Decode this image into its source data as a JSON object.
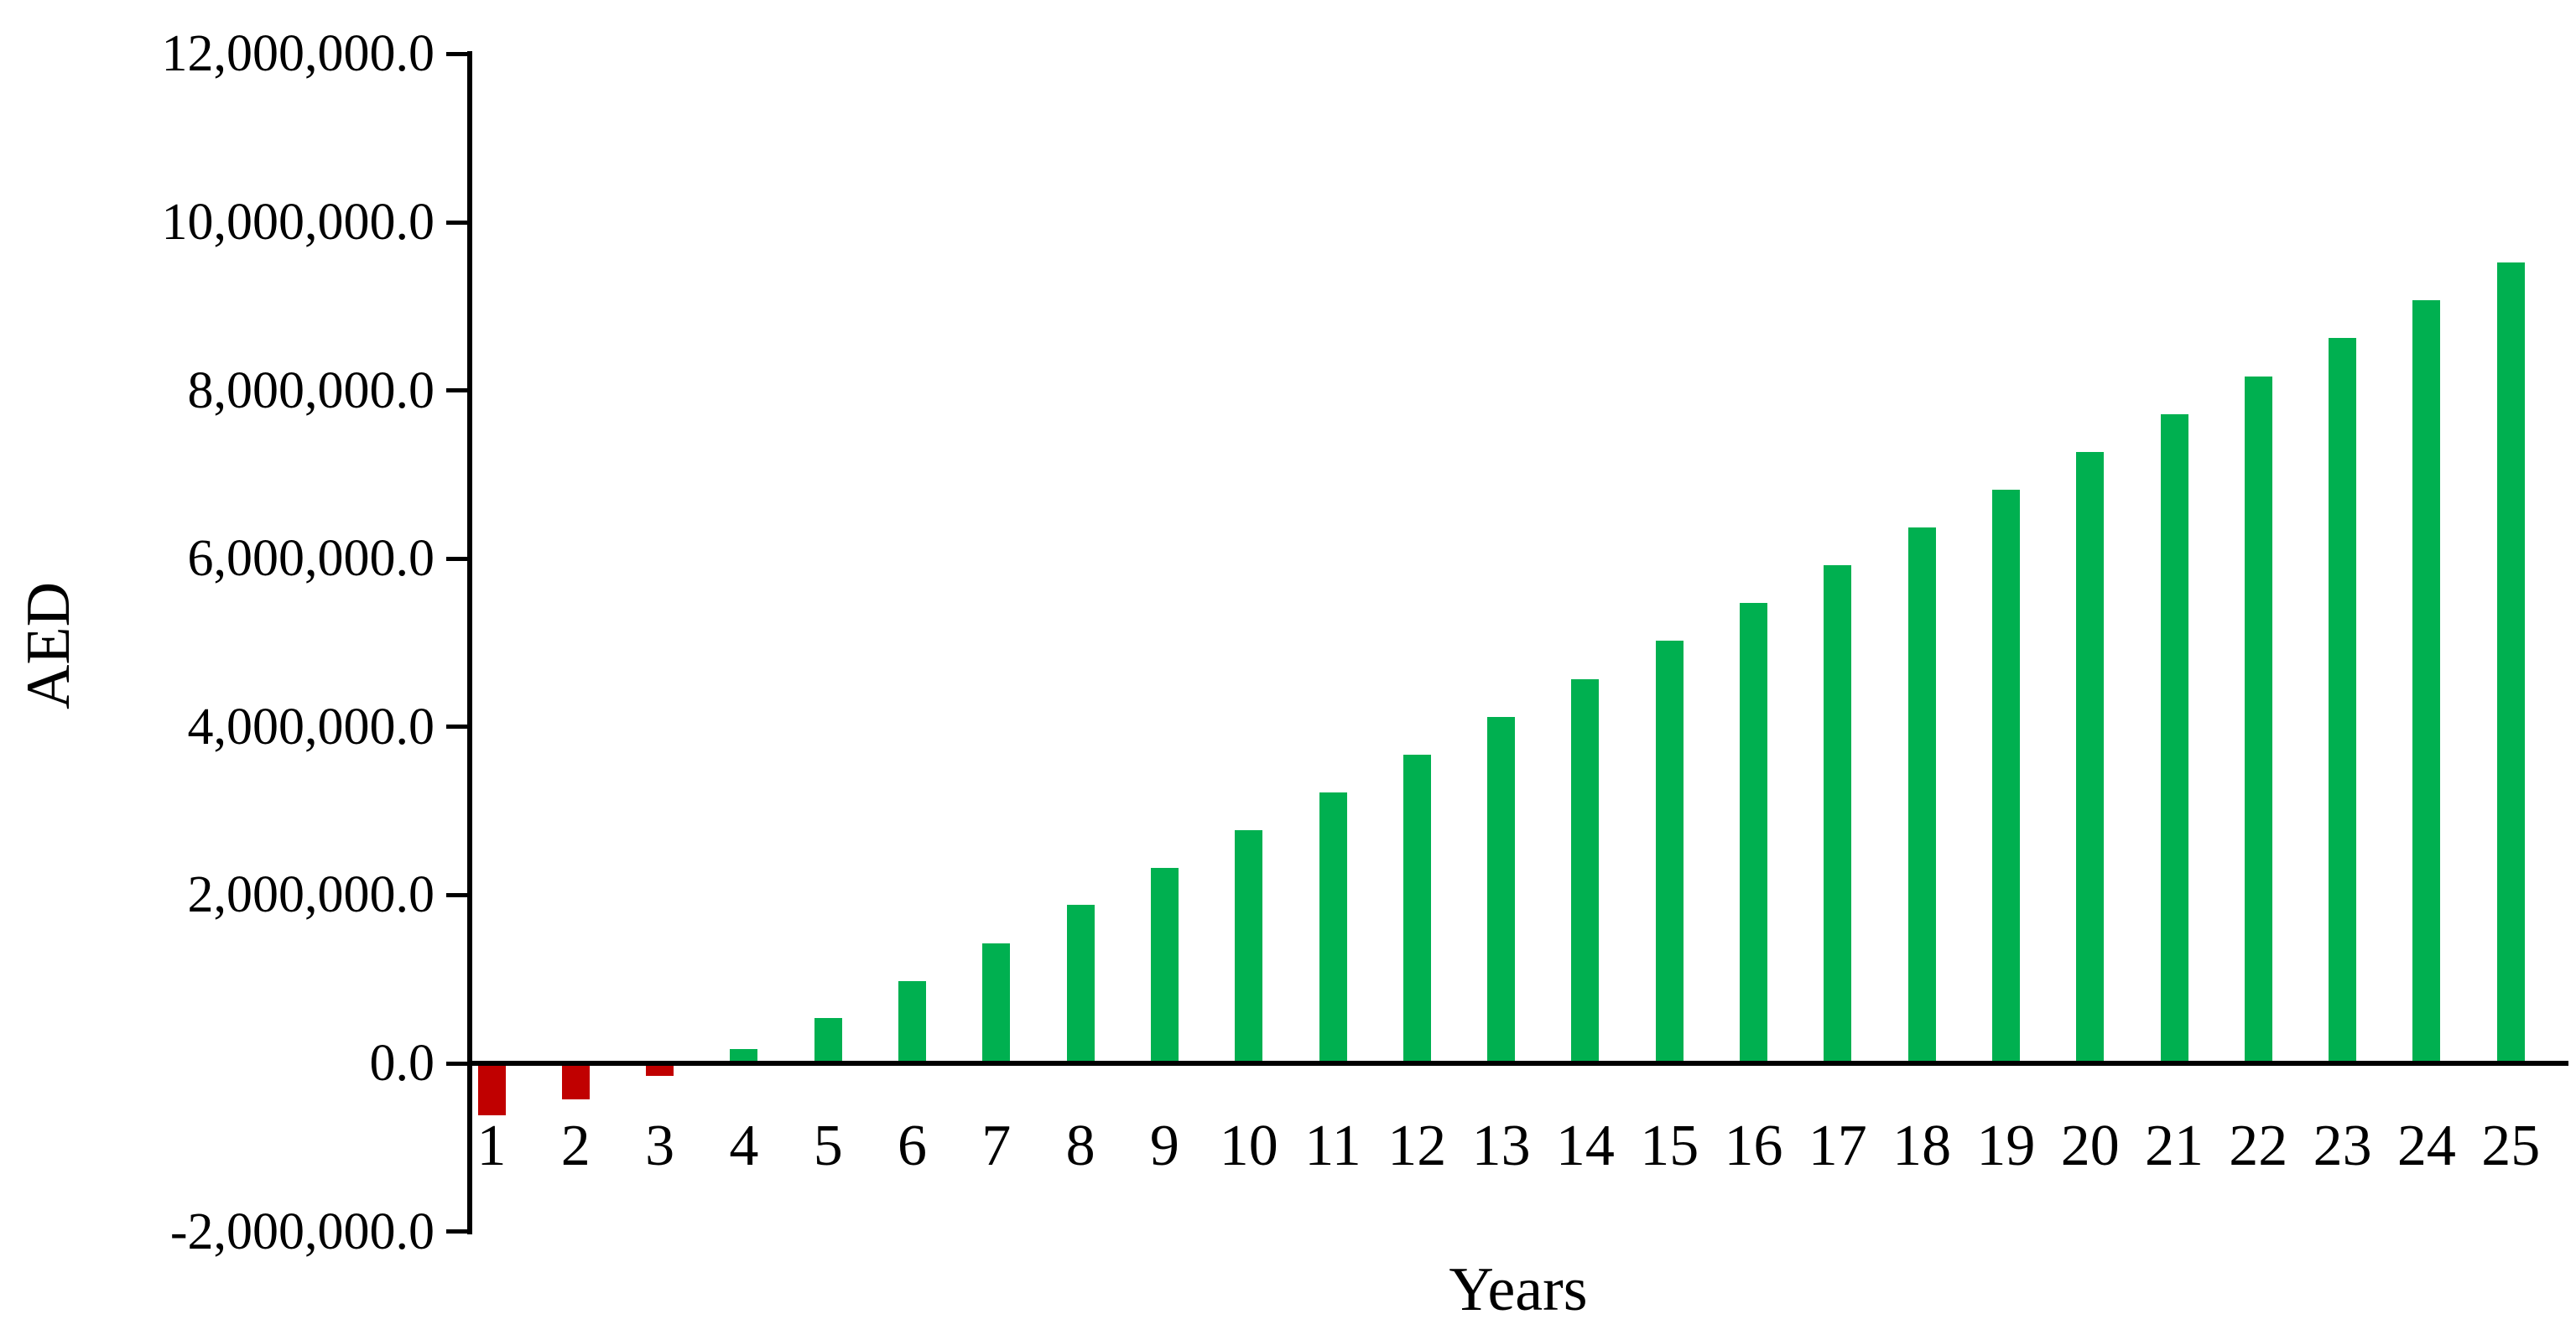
{
  "chart_data": {
    "type": "bar",
    "title": "",
    "xlabel": "Years",
    "ylabel": "AED",
    "categories": [
      "1",
      "2",
      "3",
      "4",
      "5",
      "6",
      "7",
      "8",
      "9",
      "10",
      "11",
      "12",
      "13",
      "14",
      "15",
      "16",
      "17",
      "18",
      "19",
      "20",
      "21",
      "22",
      "23",
      "24",
      "25"
    ],
    "values": [
      -620000,
      -430000,
      -150000,
      170000,
      540000,
      980000,
      1430000,
      1880000,
      2320000,
      2770000,
      3220000,
      3670000,
      4120000,
      4570000,
      5020000,
      5470000,
      5920000,
      6370000,
      6820000,
      7270000,
      7720000,
      8170000,
      8620000,
      9070000,
      9520000
    ],
    "ylim": [
      -2000000,
      12000000
    ],
    "ytick_step": 2000000,
    "ytick_values": [
      12000000,
      10000000,
      8000000,
      6000000,
      4000000,
      2000000,
      0,
      -2000000
    ],
    "ytick_labels": [
      "12,000,000.0",
      "10,000,000.0",
      "8,000,000.0",
      "6,000,000.0",
      "4,000,000.0",
      "2,000,000.0",
      "0.0",
      "-2,000,000.0"
    ],
    "grid": "off",
    "legend": "none",
    "colors": {
      "positive_bar": "#00B050",
      "negative_bar": "#C00000",
      "axis": "#000000",
      "background": "#FFFFFF"
    }
  }
}
